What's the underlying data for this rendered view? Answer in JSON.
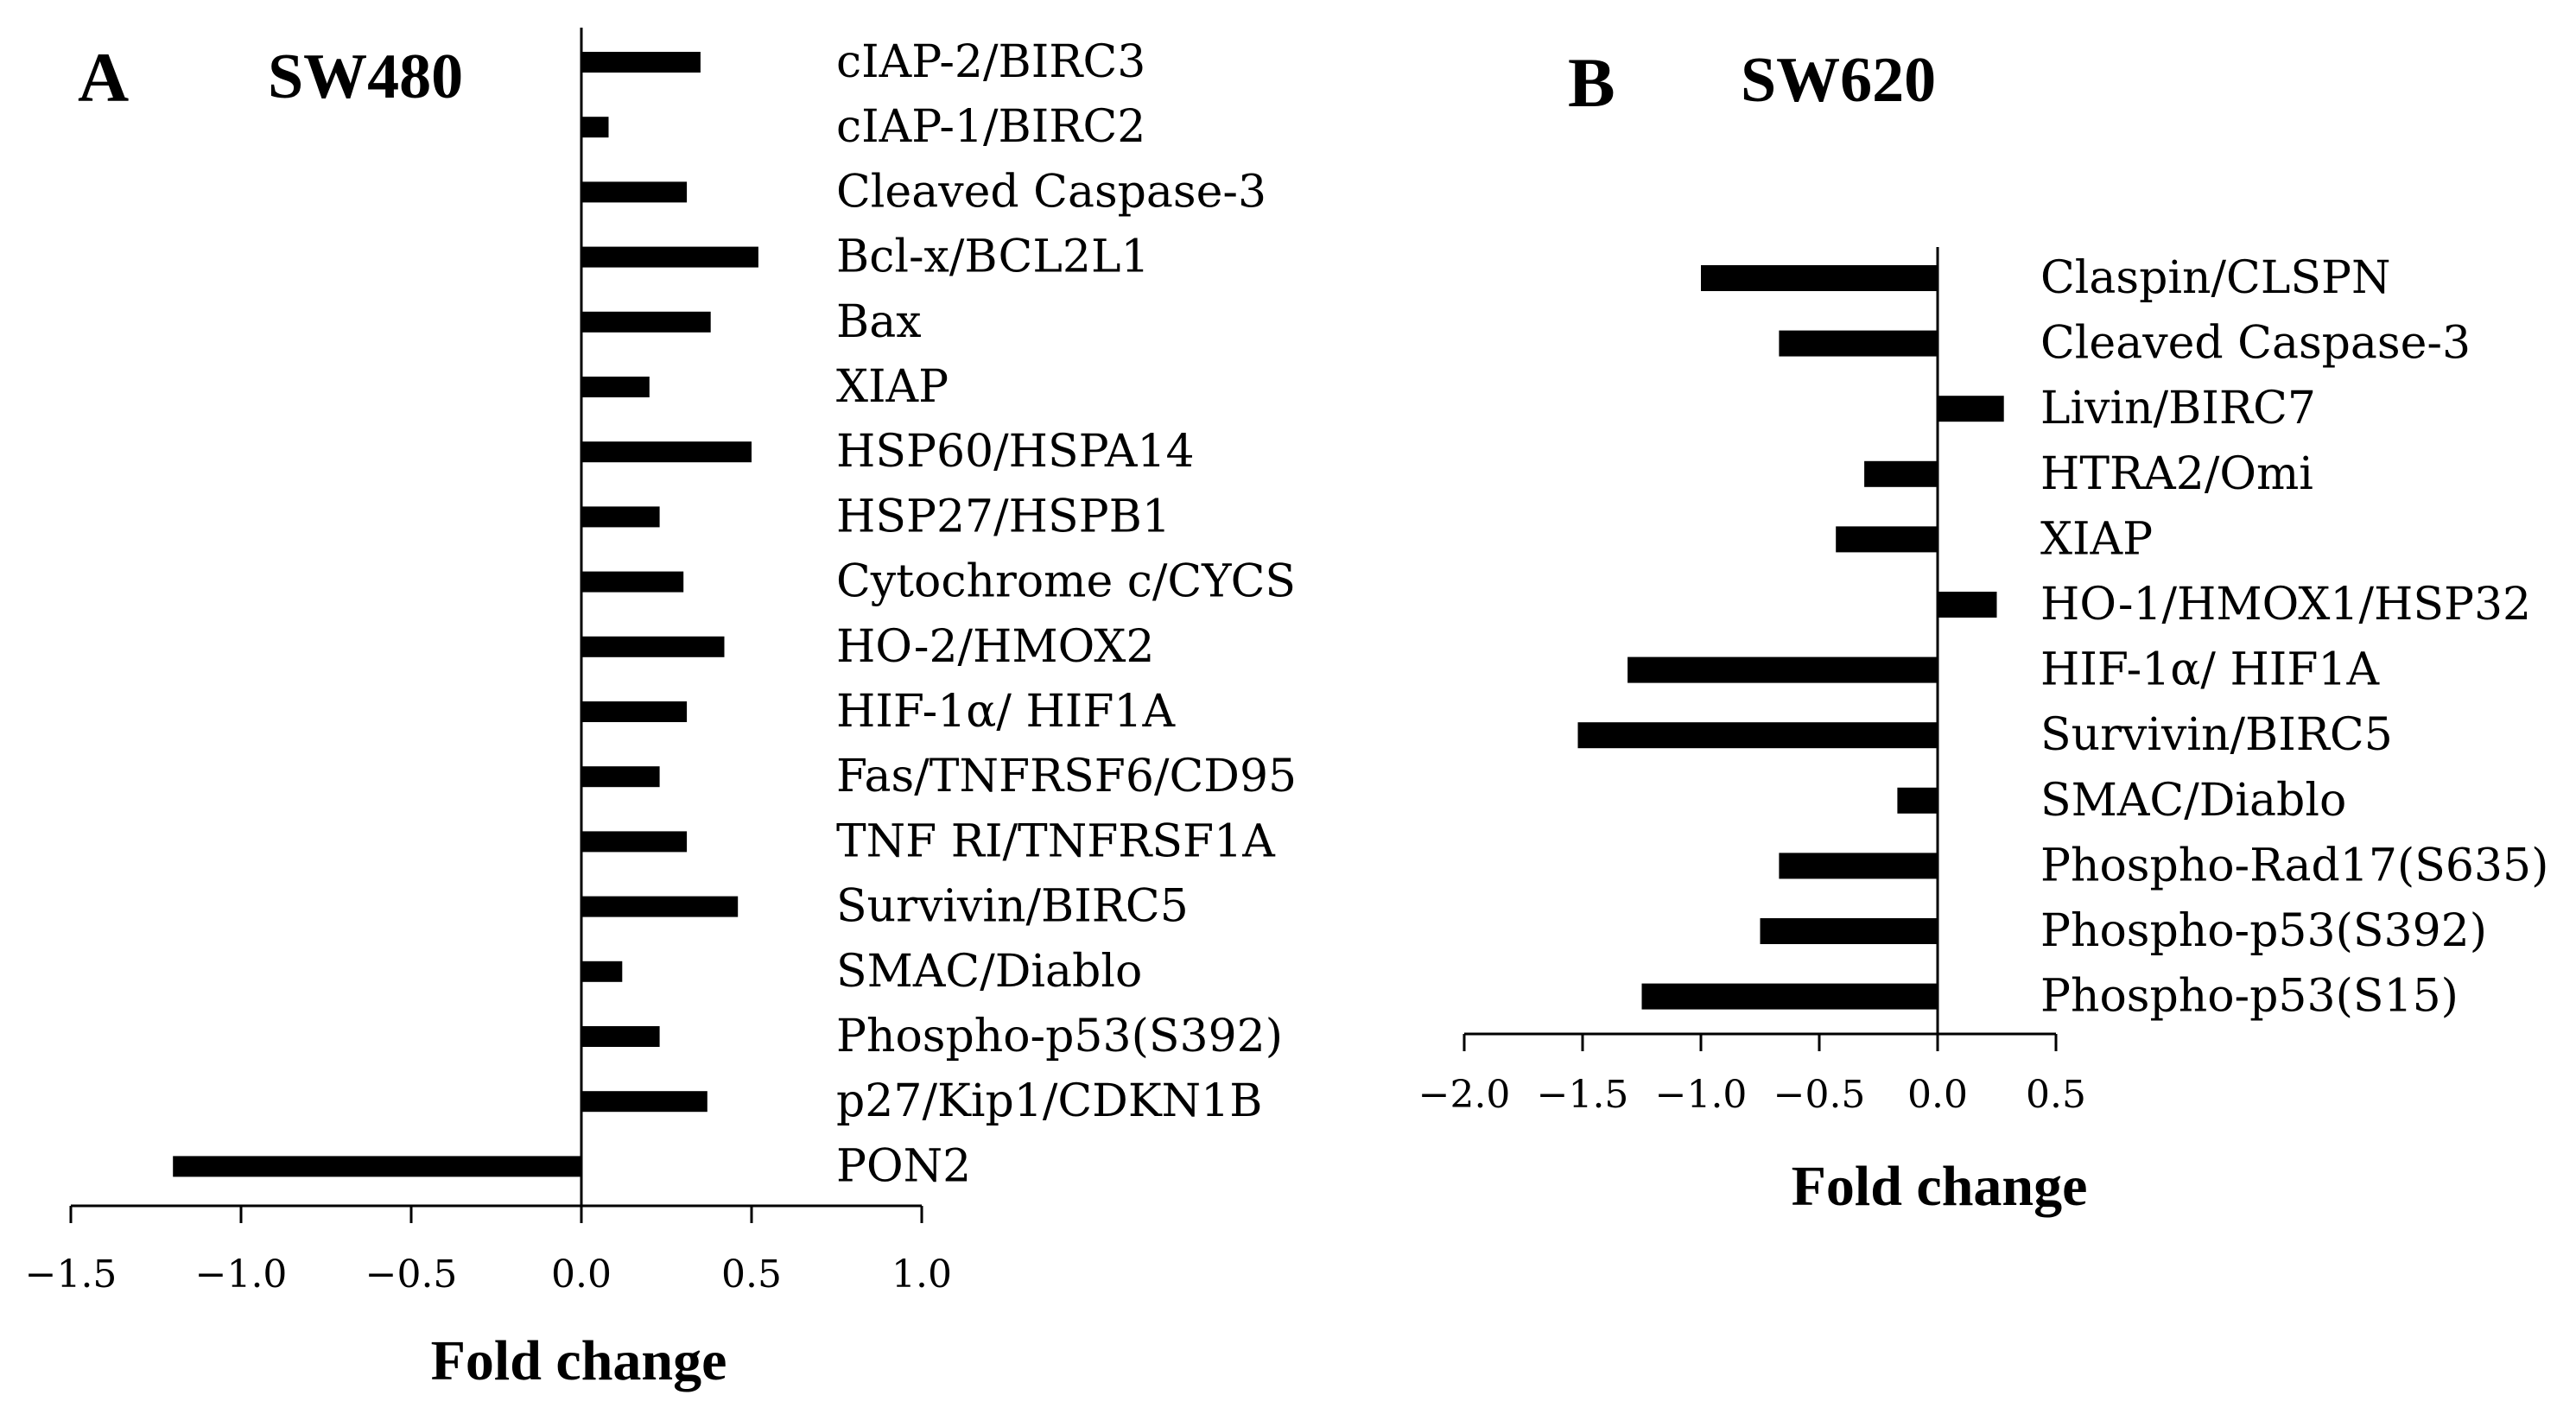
{
  "chart_data": [
    {
      "type": "bar",
      "orientation": "horizontal",
      "panel": "A",
      "title": "SW480",
      "xlabel": "Fold change",
      "ylabel": "",
      "xlim": [
        -1.5,
        1.0
      ],
      "xticks": [
        -1.5,
        -1.0,
        -0.5,
        0.0,
        0.5,
        1.0
      ],
      "xtick_labels": [
        "−1.5",
        "−1.0",
        "−0.5",
        "0.0",
        "0.5",
        "1.0"
      ],
      "grid": false,
      "legend": "none",
      "color": "#000000",
      "categories": [
        "cIAP-2/BIRC3",
        "cIAP-1/BIRC2",
        "Cleaved Caspase-3",
        "Bcl-x/BCL2L1",
        "Bax",
        "XIAP",
        "HSP60/HSPA14",
        "HSP27/HSPB1",
        "Cytochrome c/CYCS",
        "HO-2/HMOX2",
        "HIF-1α/ HIF1A",
        "Fas/TNFRSF6/CD95",
        "TNF RI/TNFRSF1A",
        "Survivin/BIRC5",
        "SMAC/Diablo",
        "Phospho-p53(S392)",
        "p27/Kip1/CDKN1B",
        "PON2"
      ],
      "values": [
        0.35,
        0.08,
        0.31,
        0.52,
        0.38,
        0.2,
        0.5,
        0.23,
        0.3,
        0.42,
        0.31,
        0.23,
        0.31,
        0.46,
        0.12,
        0.23,
        0.37,
        -1.2
      ]
    },
    {
      "type": "bar",
      "orientation": "horizontal",
      "panel": "B",
      "title": "SW620",
      "xlabel": "Fold change",
      "ylabel": "",
      "xlim": [
        -2.0,
        0.5
      ],
      "xticks": [
        -2.0,
        -1.5,
        -1.0,
        -0.5,
        0.0,
        0.5
      ],
      "xtick_labels": [
        "−2.0",
        "−1.5",
        "−1.0",
        "−0.5",
        "0.0",
        "0.5"
      ],
      "grid": false,
      "legend": "none",
      "color": "#000000",
      "categories": [
        "Claspin/CLSPN",
        "Cleaved Caspase-3",
        "Livin/BIRC7",
        "HTRA2/Omi",
        "XIAP",
        "HO-1/HMOX1/HSP32",
        "HIF-1α/ HIF1A",
        "Survivin/BIRC5",
        "SMAC/Diablo",
        "Phospho-Rad17(S635)",
        "Phospho-p53(S392)",
        "Phospho-p53(S15)"
      ],
      "values": [
        -1.0,
        -0.67,
        0.28,
        -0.31,
        -0.43,
        0.25,
        -1.31,
        -1.52,
        -0.17,
        -0.67,
        -0.75,
        -1.25
      ]
    }
  ]
}
